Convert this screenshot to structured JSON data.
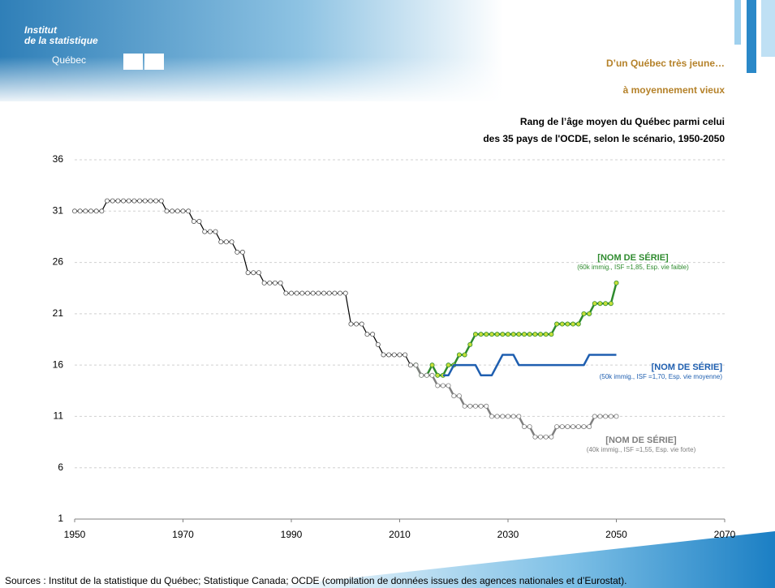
{
  "header": {
    "logo_line1": "Institut",
    "logo_line2": "de la statistique",
    "logo_name": "Québec"
  },
  "chart_data": {
    "type": "line",
    "title_line1": "D’un Québec très jeune…",
    "title_line2": "à moyennement vieux",
    "subtitle_line1": "Rang de l’âge moyen du Québec parmi celui",
    "subtitle_line2": "des 35 pays de l'OCDE, selon le scénario, 1950-2050",
    "xlim": [
      1950,
      2070
    ],
    "xticks": [
      1950,
      1970,
      1990,
      2010,
      2030,
      2050,
      2070
    ],
    "ylim": [
      1,
      36
    ],
    "yticks": [
      1,
      6,
      11,
      16,
      21,
      26,
      31,
      36
    ],
    "grid": true,
    "series": [
      {
        "color": "#000000",
        "markers": true,
        "marker_fill": "#ffffff",
        "x": [
          1950,
          1951,
          1952,
          1953,
          1954,
          1955,
          1956,
          1957,
          1958,
          1959,
          1960,
          1961,
          1962,
          1963,
          1964,
          1965,
          1966,
          1967,
          1968,
          1969,
          1970,
          1971,
          1972,
          1973,
          1974,
          1975,
          1976,
          1977,
          1978,
          1979,
          1980,
          1981,
          1982,
          1983,
          1984,
          1985,
          1986,
          1987,
          1988,
          1989,
          1990,
          1991,
          1992,
          1993,
          1994,
          1995,
          1996,
          1997,
          1998,
          1999,
          2000,
          2001,
          2002,
          2003,
          2004,
          2005,
          2006,
          2007,
          2008,
          2009,
          2010,
          2011,
          2012,
          2013
        ],
        "values": [
          31,
          31,
          31,
          31,
          31,
          31,
          32,
          32,
          32,
          32,
          32,
          32,
          32,
          32,
          32,
          32,
          32,
          31,
          31,
          31,
          31,
          31,
          30,
          30,
          29,
          29,
          29,
          28,
          28,
          28,
          27,
          27,
          25,
          25,
          25,
          24,
          24,
          24,
          24,
          23,
          23,
          23,
          23,
          23,
          23,
          23,
          23,
          23,
          23,
          23,
          23,
          20,
          20,
          20,
          19,
          19,
          18,
          17,
          17,
          17,
          17,
          17,
          16,
          16
        ]
      },
      {
        "name": "[NOM DE SÉRIE]",
        "description": "(60k immig., ISF =1,85, Esp. vie faible)",
        "color": "#2e8b2e",
        "markers": true,
        "marker_fill": "#c6e03a",
        "x": [
          2013,
          2014,
          2015,
          2016,
          2017,
          2018,
          2019,
          2020,
          2021,
          2022,
          2023,
          2024,
          2025,
          2026,
          2027,
          2028,
          2029,
          2030,
          2031,
          2032,
          2033,
          2034,
          2035,
          2036,
          2037,
          2038,
          2039,
          2040,
          2041,
          2042,
          2043,
          2044,
          2045,
          2046,
          2047,
          2048,
          2049,
          2050
        ],
        "values": [
          16,
          15,
          15,
          16,
          15,
          15,
          16,
          16,
          17,
          17,
          18,
          19,
          19,
          19,
          19,
          19,
          19,
          19,
          19,
          19,
          19,
          19,
          19,
          19,
          19,
          19,
          20,
          20,
          20,
          20,
          20,
          21,
          21,
          22,
          22,
          22,
          22,
          24
        ]
      },
      {
        "name": "[NOM DE SÉRIE]",
        "description": "(50k immig., ISF =1,70, Esp. vie moyenne)",
        "color": "#1f5fb0",
        "markers": false,
        "x": [
          2018,
          2019,
          2020,
          2021,
          2022,
          2023,
          2024,
          2025,
          2026,
          2027,
          2028,
          2029,
          2030,
          2031,
          2032,
          2033,
          2034,
          2035,
          2036,
          2037,
          2038,
          2039,
          2040,
          2041,
          2042,
          2043,
          2044,
          2045,
          2046,
          2047,
          2048,
          2049,
          2050
        ],
        "values": [
          15,
          15,
          16,
          16,
          16,
          16,
          16,
          15,
          15,
          15,
          16,
          17,
          17,
          17,
          16,
          16,
          16,
          16,
          16,
          16,
          16,
          16,
          16,
          16,
          16,
          16,
          16,
          17,
          17,
          17,
          17,
          17,
          17
        ]
      },
      {
        "name": "[NOM DE SÉRIE]",
        "description": "(40k immig., ISF =1,55, Esp. vie forte)",
        "color": "#7f7f7f",
        "markers": true,
        "marker_fill": "#ffffff",
        "x": [
          2013,
          2014,
          2015,
          2016,
          2017,
          2018,
          2019,
          2020,
          2021,
          2022,
          2023,
          2024,
          2025,
          2026,
          2027,
          2028,
          2029,
          2030,
          2031,
          2032,
          2033,
          2034,
          2035,
          2036,
          2037,
          2038,
          2039,
          2040,
          2041,
          2042,
          2043,
          2044,
          2045,
          2046,
          2047,
          2048,
          2049,
          2050
        ],
        "values": [
          16,
          15,
          15,
          15,
          14,
          14,
          14,
          13,
          13,
          12,
          12,
          12,
          12,
          12,
          11,
          11,
          11,
          11,
          11,
          11,
          10,
          10,
          9,
          9,
          9,
          9,
          10,
          10,
          10,
          10,
          10,
          10,
          10,
          11,
          11,
          11,
          11,
          11
        ]
      }
    ],
    "source": "Sources : Institut de la statistique du Québec; Statistique Canada; OCDE (compilation de données issues des agences nationales et d’Eurostat)."
  }
}
